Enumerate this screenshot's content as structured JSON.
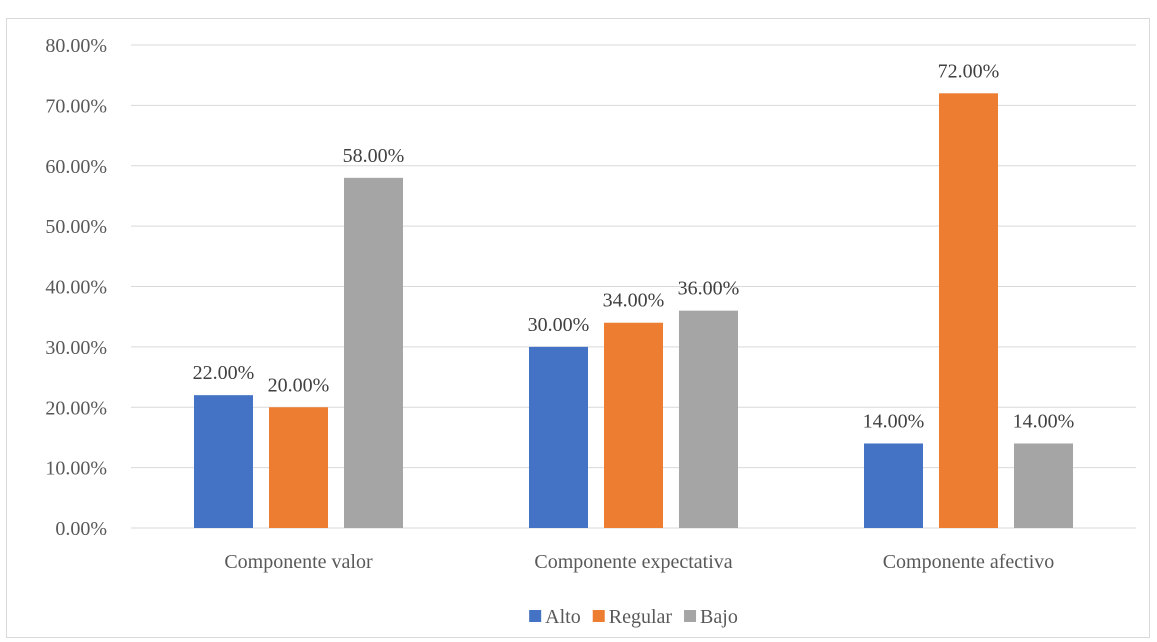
{
  "chart_data": {
    "type": "bar",
    "title": "",
    "xlabel": "",
    "ylabel": "",
    "categories": [
      "Componente valor",
      "Componente expectativa",
      "Componente afectivo"
    ],
    "series": [
      {
        "name": "Alto",
        "color": "#4472c4",
        "values": [
          22,
          30,
          14
        ],
        "labels": [
          "22.00%",
          "30.00%",
          "14.00%"
        ]
      },
      {
        "name": "Regular",
        "color": "#ed7d31",
        "values": [
          20,
          34,
          72
        ],
        "labels": [
          "20.00%",
          "34.00%",
          "72.00%"
        ]
      },
      {
        "name": "Bajo",
        "color": "#a5a5a5",
        "values": [
          58,
          36,
          14
        ],
        "labels": [
          "58.00%",
          "36.00%",
          "14.00%"
        ]
      }
    ],
    "ylim": [
      0,
      80
    ],
    "yticks": [
      0,
      10,
      20,
      30,
      40,
      50,
      60,
      70,
      80
    ],
    "ytick_labels": [
      "0.00%",
      "10.00%",
      "20.00%",
      "30.00%",
      "40.00%",
      "50.00%",
      "60.00%",
      "70.00%",
      "80.00%"
    ],
    "grid": true,
    "legend_position": "bottom",
    "gridline_color": "#d9d9d9"
  }
}
